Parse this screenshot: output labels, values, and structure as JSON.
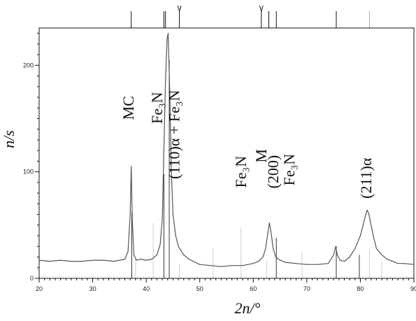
{
  "chart_data": {
    "type": "line",
    "xlabel": "2n/°",
    "ylabel": "n/s",
    "xlim": [
      20,
      90
    ],
    "ylim": [
      0,
      235
    ],
    "x_ticks": [
      "20",
      "30",
      "40",
      "50",
      "60",
      "70",
      "80",
      "90"
    ],
    "y_ticks": [
      "0",
      "100",
      "200"
    ],
    "grid": false,
    "series": [
      {
        "x": [
          20,
          22,
          24,
          26,
          28,
          30,
          32,
          34,
          35,
          36,
          36.6,
          37.0,
          37.2,
          37.4,
          37.7,
          38.2,
          39,
          40,
          41,
          42,
          42.6,
          43.0,
          43.3,
          43.6,
          43.9,
          44.1,
          44.4,
          44.7,
          45.0,
          45.5,
          46,
          47,
          48,
          50,
          52,
          54,
          56,
          58,
          59,
          60,
          61,
          61.8,
          62.3,
          62.7,
          63.0,
          63.3,
          63.7,
          64.2,
          65,
          66,
          68,
          70,
          72,
          74,
          75.0,
          75.4,
          75.7,
          76.2,
          77,
          78,
          79,
          80,
          80.5,
          81.0,
          81.3,
          81.6,
          82.0,
          82.5,
          83,
          84,
          85,
          86,
          87,
          88,
          90
        ],
        "y": [
          17,
          16,
          17,
          16,
          16,
          17,
          17,
          16,
          17,
          18,
          25,
          60,
          105,
          55,
          22,
          17,
          18,
          17,
          18,
          22,
          32,
          55,
          120,
          185,
          225,
          230,
          175,
          100,
          60,
          40,
          30,
          22,
          18,
          13,
          12,
          11,
          12,
          12,
          13,
          14,
          16,
          20,
          28,
          42,
          52,
          44,
          28,
          20,
          17,
          15,
          14,
          13,
          13,
          14,
          22,
          30,
          22,
          17,
          16,
          20,
          28,
          40,
          50,
          60,
          64,
          60,
          50,
          38,
          28,
          22,
          18,
          16,
          14,
          14,
          13
        ]
      }
    ],
    "reference_lines": [
      {
        "x": 37.3,
        "h": 62,
        "dark": true
      },
      {
        "x": 38.0,
        "h": 20,
        "dark": false
      },
      {
        "x": 41.3,
        "h": 52,
        "dark": false
      },
      {
        "x": 43.3,
        "h": 98,
        "dark": true
      },
      {
        "x": 44.3,
        "h": 205,
        "dark": true
      },
      {
        "x": 46.2,
        "h": 13,
        "dark": false
      },
      {
        "x": 52.5,
        "h": 28,
        "dark": false
      },
      {
        "x": 57.7,
        "h": 48,
        "dark": false
      },
      {
        "x": 62.5,
        "h": 16,
        "dark": false
      },
      {
        "x": 64.3,
        "h": 38,
        "dark": true
      },
      {
        "x": 69.1,
        "h": 24,
        "dark": false
      },
      {
        "x": 75.5,
        "h": 30,
        "dark": true
      },
      {
        "x": 79.8,
        "h": 22,
        "dark": true
      },
      {
        "x": 81.7,
        "h": 28,
        "dark": false
      },
      {
        "x": 84.0,
        "h": 16,
        "dark": false
      }
    ],
    "top_ticks": [
      {
        "x": 37.2,
        "marker": "line"
      },
      {
        "x": 43.3,
        "marker": "line"
      },
      {
        "x": 43.6,
        "marker": "line"
      },
      {
        "x": 46.2,
        "marker": "arrow"
      },
      {
        "x": 61.5,
        "marker": "arrow"
      },
      {
        "x": 62.9,
        "marker": "line"
      },
      {
        "x": 64.3,
        "marker": "line"
      },
      {
        "x": 75.5,
        "marker": "line"
      },
      {
        "x": 81.7,
        "marker": "light"
      }
    ],
    "annotations": [
      {
        "text": "MC",
        "x": 37.0,
        "y": 160
      },
      {
        "text": "Fe₃N",
        "x": 42.3,
        "y": 160
      },
      {
        "text": "(110)α + Fe₃N",
        "x": 45.5,
        "y": 135
      },
      {
        "text": "Fe₃N",
        "x": 58.0,
        "y": 100
      },
      {
        "text": "M",
        "x": 61.8,
        "y": 115
      },
      {
        "text": "(200)",
        "x": 64.0,
        "y": 100
      },
      {
        "text": "Fe₃N",
        "x": 67.0,
        "y": 102
      },
      {
        "text": "(211)α",
        "x": 81.4,
        "y": 94
      }
    ]
  }
}
